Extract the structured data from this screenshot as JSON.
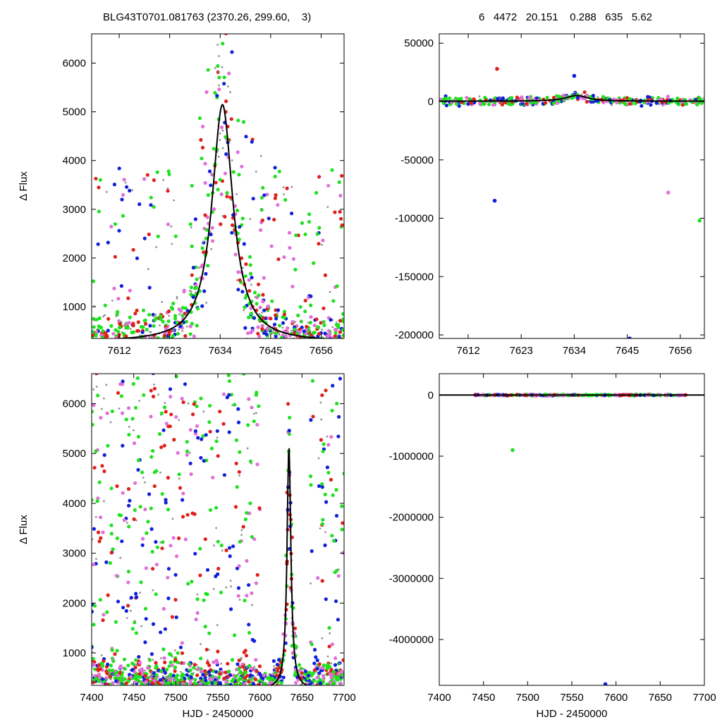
{
  "header": {
    "left_title": "BLG43T0701.081763 (2370.26, 299.60,    3)",
    "right_title": "6   4472   20.151    0.288   635   5.62"
  },
  "colors": {
    "red": "#e0201a",
    "magenta": "#e070d8",
    "blue": "#1020d8",
    "green": "#20e020",
    "gray": "#909090",
    "model": "#000000"
  },
  "chart_data": [
    {
      "id": "top-left",
      "type": "scatter",
      "title": "BLG43T0701.081763 (2370.26, 299.60,    3)",
      "xlabel": "",
      "ylabel": "Δ Flux",
      "xlim": [
        7606,
        7661
      ],
      "ylim": [
        350,
        6600
      ],
      "xticks": [
        7612,
        7623,
        7634,
        7645,
        7656
      ],
      "yticks": [
        1000,
        2000,
        3000,
        4000,
        5000,
        6000
      ],
      "model": {
        "t0": 7634.5,
        "peak": 5150,
        "base": 280,
        "width": 3.2
      },
      "grid": false
    },
    {
      "id": "top-right",
      "type": "scatter",
      "title": "6   4472   20.151    0.288   635   5.62",
      "xlabel": "",
      "ylabel": "",
      "xlim": [
        7606,
        7661
      ],
      "ylim": [
        -203000,
        58000
      ],
      "xticks": [
        7612,
        7623,
        7634,
        7645,
        7656
      ],
      "yticks": [
        -200000,
        -150000,
        -100000,
        -50000,
        0,
        50000
      ],
      "model": {
        "t0": 7634.5,
        "peak": 5150,
        "base": 280,
        "width": 3.2
      },
      "outliers": [
        {
          "x": 7617.5,
          "y": -85000,
          "c": "blue"
        },
        {
          "x": 7653.5,
          "y": -78000,
          "c": "magenta"
        },
        {
          "x": 7660,
          "y": -102000,
          "c": "green"
        },
        {
          "x": 7645.5,
          "y": -203000,
          "c": "blue"
        },
        {
          "x": 7618,
          "y": 28000,
          "c": "red"
        },
        {
          "x": 7634,
          "y": 22000,
          "c": "blue"
        }
      ],
      "grid": false
    },
    {
      "id": "bottom-left",
      "type": "scatter",
      "xlabel": "HJD - 2450000",
      "ylabel": "Δ Flux",
      "xlim": [
        7400,
        7700
      ],
      "ylim": [
        350,
        6600
      ],
      "xticks": [
        7400,
        7450,
        7500,
        7550,
        7600,
        7650,
        7700
      ],
      "yticks": [
        1000,
        2000,
        3000,
        4000,
        5000,
        6000
      ],
      "model": {
        "t0": 7634.5,
        "peak": 5150,
        "base": 280,
        "width": 3.2
      },
      "grid": false
    },
    {
      "id": "bottom-right",
      "type": "scatter",
      "xlabel": "HJD - 2450000",
      "ylabel": "",
      "xlim": [
        7400,
        7700
      ],
      "ylim": [
        -4750000,
        350000
      ],
      "xticks": [
        7400,
        7450,
        7500,
        7550,
        7600,
        7650,
        7700
      ],
      "yticks": [
        -4000000,
        -3000000,
        -2000000,
        -1000000,
        0
      ],
      "model": {
        "t0": 7634.5,
        "peak": 5150,
        "base": 280,
        "width": 3.2
      },
      "outliers": [
        {
          "x": 7483,
          "y": -900000,
          "c": "green"
        },
        {
          "x": 7588,
          "y": -4730000,
          "c": "blue"
        }
      ],
      "grid": false
    }
  ]
}
